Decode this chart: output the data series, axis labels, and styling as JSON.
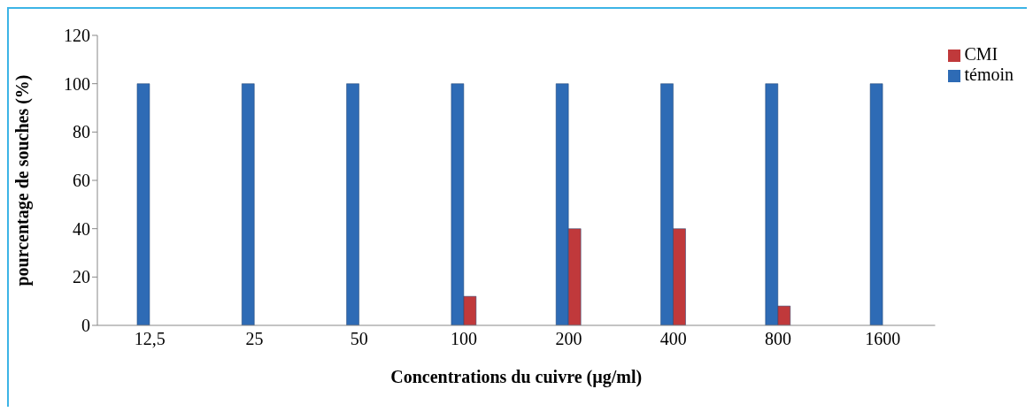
{
  "chart_data": {
    "type": "bar",
    "xlabel": "Concentrations du cuivre (µg/ml)",
    "ylabel": "pourcentage de souches (%)",
    "categories": [
      "12,5",
      "25",
      "50",
      "100",
      "200",
      "400",
      "800",
      "1600"
    ],
    "series": [
      {
        "name": "témoin",
        "color": "#2e6bb5",
        "values": [
          100,
          100,
          100,
          100,
          100,
          100,
          100,
          100
        ]
      },
      {
        "name": "CMI",
        "color": "#c0393b",
        "values": [
          0,
          0,
          0,
          12,
          40,
          40,
          8,
          0
        ]
      }
    ],
    "ylim": [
      0,
      120
    ],
    "yticks": [
      0,
      20,
      40,
      60,
      80,
      100,
      120
    ],
    "grid": false,
    "legend": "right"
  }
}
